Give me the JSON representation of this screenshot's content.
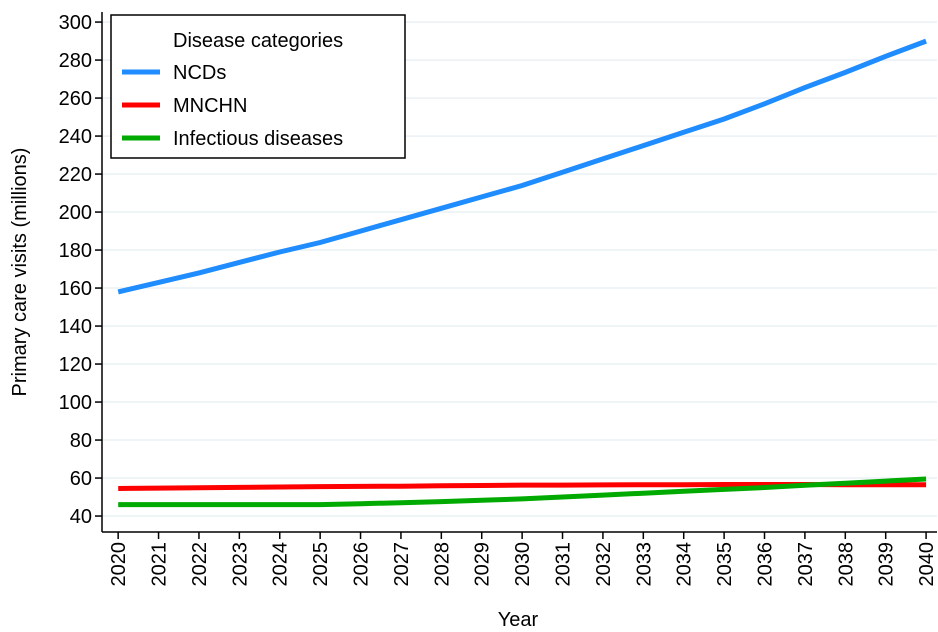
{
  "chart_data": {
    "type": "line",
    "x_label": "Year",
    "y_label": "Primary care visits (millions)",
    "legend_title": "Disease categories",
    "legend_position": "upper-left",
    "grid": true,
    "x": [
      2020,
      2021,
      2022,
      2023,
      2024,
      2025,
      2026,
      2027,
      2028,
      2029,
      2030,
      2031,
      2032,
      2033,
      2034,
      2035,
      2036,
      2037,
      2038,
      2039,
      2040
    ],
    "xlim": [
      2019.6,
      2040.27
    ],
    "xticks": [
      2020,
      2021,
      2022,
      2023,
      2024,
      2025,
      2026,
      2027,
      2028,
      2029,
      2030,
      2031,
      2032,
      2033,
      2034,
      2035,
      2036,
      2037,
      2038,
      2039,
      2040
    ],
    "ylim": [
      31.6,
      305.3
    ],
    "yticks": [
      40,
      60,
      80,
      100,
      120,
      140,
      160,
      180,
      200,
      220,
      240,
      260,
      280,
      300
    ],
    "series": [
      {
        "name": "NCDs",
        "color": "#1f8cff",
        "values": [
          158,
          163,
          168,
          173.5,
          179,
          184,
          190,
          196,
          202,
          208,
          214,
          221,
          228,
          235,
          242,
          249,
          257,
          265.5,
          273.5,
          282,
          290
        ]
      },
      {
        "name": "MNCHN",
        "color": "#ff0000",
        "values": [
          54.5,
          54.7,
          54.9,
          55.1,
          55.3,
          55.5,
          55.6,
          55.7,
          55.9,
          56.1,
          56.3,
          56.3,
          56.4,
          56.5,
          56.5,
          56.6,
          56.6,
          56.6,
          56.5,
          56.5,
          56.5
        ]
      },
      {
        "name": "Infectious diseases",
        "color": "#00aa00",
        "values": [
          46,
          46,
          46,
          46,
          46,
          46,
          46.5,
          47,
          47.6,
          48.3,
          49,
          50,
          51,
          52,
          53,
          54,
          55,
          56.2,
          57.3,
          58.4,
          59.5
        ]
      }
    ]
  }
}
